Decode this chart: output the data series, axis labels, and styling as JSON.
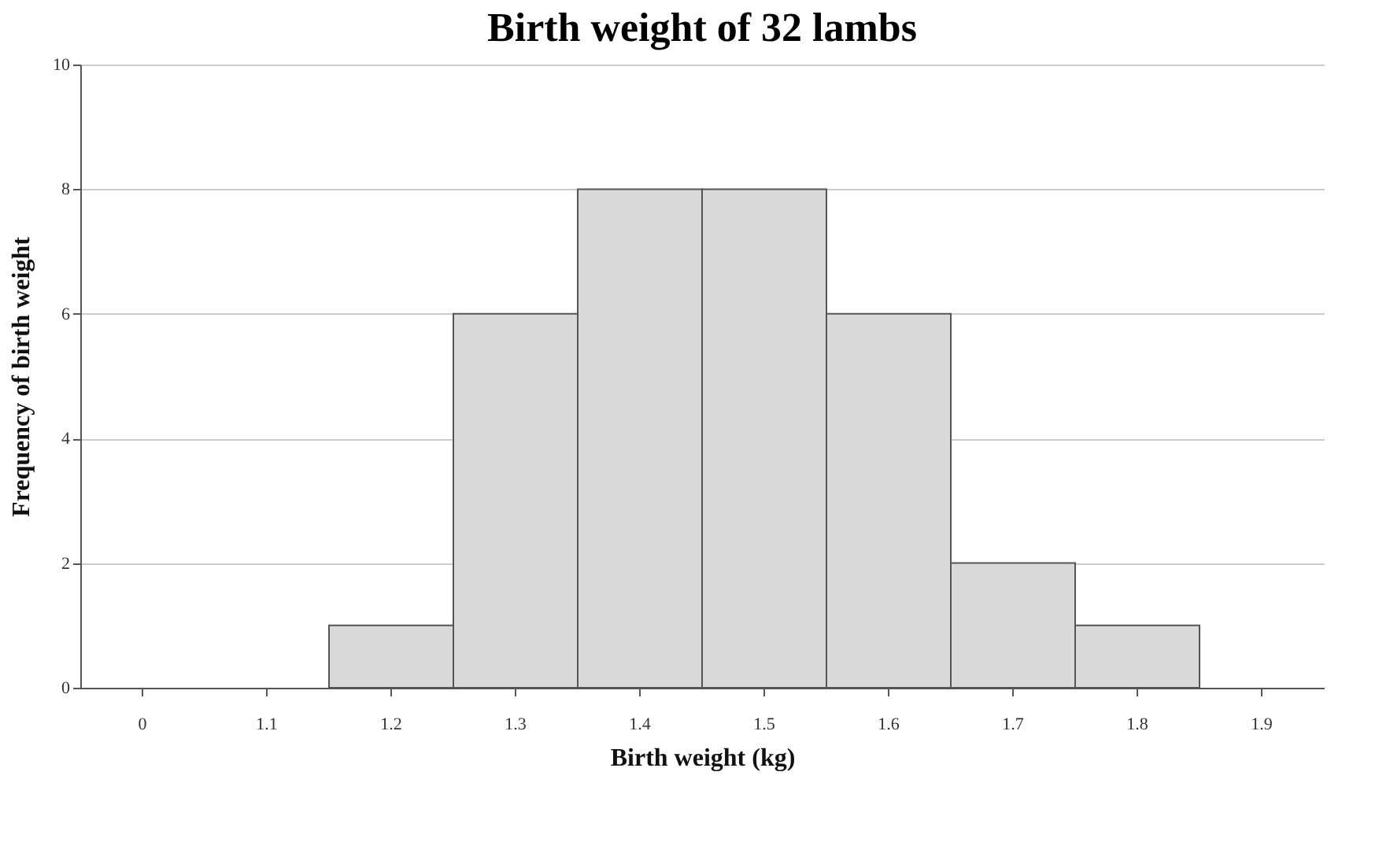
{
  "chart_data": {
    "type": "bar",
    "title": "Birth weight of 32 lambs",
    "xlabel": "Birth weight (kg)",
    "ylabel": "Frequency of birth weight",
    "categories": [
      "0",
      "1.1",
      "1.2",
      "1.3",
      "1.4",
      "1.5",
      "1.6",
      "1.7",
      "1.8",
      "1.9"
    ],
    "values": [
      0,
      0,
      1,
      6,
      8,
      8,
      6,
      2,
      1,
      0
    ],
    "color": "#d9d9d9",
    "ylim": [
      0,
      10
    ],
    "yticks": [
      0,
      2,
      4,
      6,
      8,
      10
    ],
    "grid": "y"
  }
}
